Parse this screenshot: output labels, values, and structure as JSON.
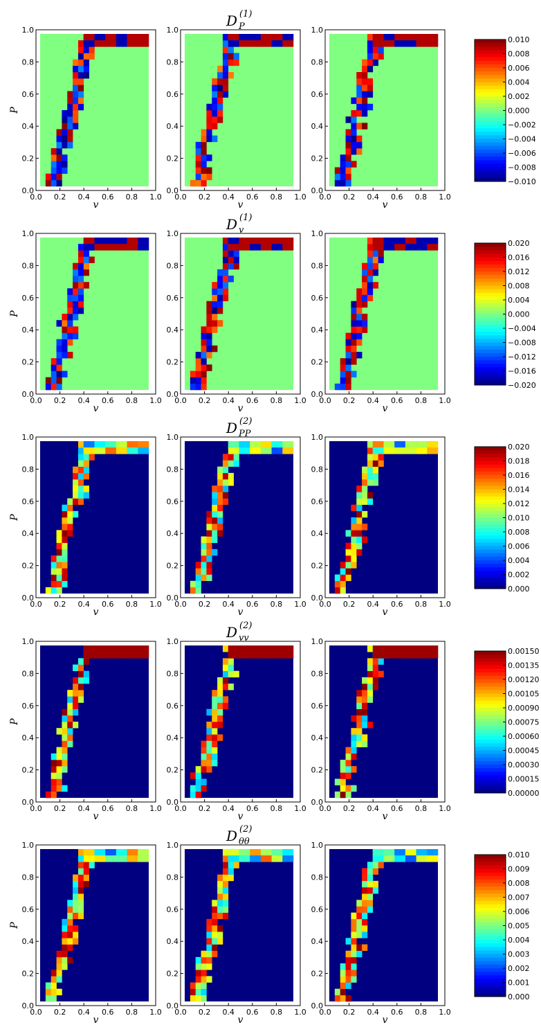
{
  "figure": {
    "colormap": "jet",
    "background": "#ffffff"
  },
  "chart_data": [
    {
      "type": "heatmap",
      "title_base": "D",
      "title_sub": "P",
      "title_sup": "(1)",
      "ylabel": "P",
      "xlabel": "v",
      "xlim": [
        0,
        1
      ],
      "ylim": [
        0,
        1
      ],
      "xticks": [
        "0.0",
        "0.2",
        "0.4",
        "0.6",
        "0.8",
        "1.0"
      ],
      "yticks": [
        "0.0",
        "0.2",
        "0.4",
        "0.6",
        "0.8",
        "1.0"
      ],
      "colorbar": {
        "min": -0.01,
        "max": 0.01,
        "ticks": [
          "0.010",
          "0.008",
          "0.006",
          "0.004",
          "0.002",
          "0.000",
          "−0.002",
          "−0.004",
          "−0.006",
          "−0.008",
          "−0.010"
        ]
      },
      "background_level": 0.5,
      "top_region": {
        "start_col": 8,
        "rows": 2
      }
    },
    {
      "type": "heatmap",
      "title_base": "D",
      "title_sub": "v",
      "title_sup": "(1)",
      "ylabel": "P",
      "xlabel": "v",
      "xlim": [
        0,
        1
      ],
      "ylim": [
        0,
        1
      ],
      "xticks": [
        "0.0",
        "0.2",
        "0.4",
        "0.6",
        "0.8",
        "1.0"
      ],
      "yticks": [
        "0.0",
        "0.2",
        "0.4",
        "0.6",
        "0.8",
        "1.0"
      ],
      "colorbar": {
        "min": -0.02,
        "max": 0.02,
        "ticks": [
          "0.020",
          "0.016",
          "0.012",
          "0.008",
          "0.004",
          "0.000",
          "−0.004",
          "−0.008",
          "−0.012",
          "−0.016",
          "−0.020"
        ]
      },
      "background_level": 0.5,
      "top_region": {
        "start_col": 8,
        "rows": 2
      }
    },
    {
      "type": "heatmap",
      "title_base": "D",
      "title_sub": "PP",
      "title_sup": "(2)",
      "ylabel": "P",
      "xlabel": "v",
      "xlim": [
        0,
        1
      ],
      "ylim": [
        0,
        1
      ],
      "xticks": [
        "0.0",
        "0.2",
        "0.4",
        "0.6",
        "0.8",
        "1.0"
      ],
      "yticks": [
        "0.0",
        "0.2",
        "0.4",
        "0.6",
        "0.8",
        "1.0"
      ],
      "colorbar": {
        "min": 0,
        "max": 0.02,
        "ticks": [
          "0.020",
          "0.018",
          "0.016",
          "0.014",
          "0.012",
          "0.010",
          "0.008",
          "0.006",
          "0.004",
          "0.002",
          "0.000"
        ]
      },
      "background_level": 0.0,
      "top_region": {
        "start_col": 8,
        "rows": 2
      }
    },
    {
      "type": "heatmap",
      "title_base": "D",
      "title_sub": "vv",
      "title_sup": "(2)",
      "ylabel": "P",
      "xlabel": "v",
      "xlim": [
        0,
        1
      ],
      "ylim": [
        0,
        1
      ],
      "xticks": [
        "0.0",
        "0.2",
        "0.4",
        "0.6",
        "0.8",
        "1.0"
      ],
      "yticks": [
        "0.0",
        "0.2",
        "0.4",
        "0.6",
        "0.8",
        "1.0"
      ],
      "colorbar": {
        "min": 0,
        "max": 0.0015,
        "ticks": [
          "0.00150",
          "0.00135",
          "0.00120",
          "0.00105",
          "0.00090",
          "0.00075",
          "0.00060",
          "0.00045",
          "0.00030",
          "0.00015",
          "0.00000"
        ]
      },
      "background_level": 0.0,
      "top_region": {
        "start_col": 8,
        "rows": 2
      }
    },
    {
      "type": "heatmap",
      "title_base": "D",
      "title_sub": "θθ",
      "title_sup": "(2)",
      "ylabel": "P",
      "xlabel": "v",
      "xlim": [
        0,
        1
      ],
      "ylim": [
        0,
        1
      ],
      "xticks": [
        "0.0",
        "0.2",
        "0.4",
        "0.6",
        "0.8",
        "1.0"
      ],
      "yticks": [
        "0.0",
        "0.2",
        "0.4",
        "0.6",
        "0.8",
        "1.0"
      ],
      "colorbar": {
        "min": 0,
        "max": 0.01,
        "ticks": [
          "0.010",
          "0.009",
          "0.008",
          "0.007",
          "0.006",
          "0.005",
          "0.004",
          "0.003",
          "0.002",
          "0.001",
          "0.000"
        ]
      },
      "background_level": 0.0,
      "top_region": {
        "start_col": 8,
        "rows": 2
      }
    }
  ]
}
